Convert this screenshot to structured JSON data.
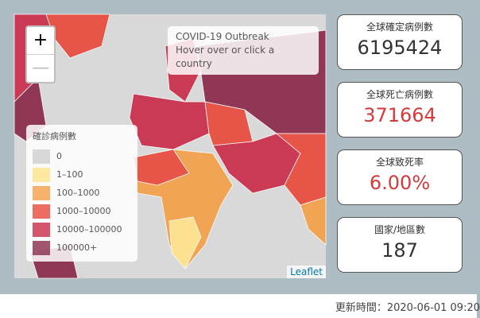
{
  "map": {
    "zoom_in": "+",
    "zoom_out": "—",
    "info": {
      "title": "COVID-19 Outbreak",
      "subtitle": "Hover over or click a country"
    },
    "legend": {
      "title": "確診病例數",
      "items": [
        {
          "label": "0",
          "color": "#d0d0d0"
        },
        {
          "label": "1–100",
          "color": "#ffe38a"
        },
        {
          "label": "100–1000",
          "color": "#f5a04a"
        },
        {
          "label": "1000–10000",
          "color": "#e84a3c"
        },
        {
          "label": "10000–100000",
          "color": "#c92d4a"
        },
        {
          "label": "100000+",
          "color": "#8a2a4a"
        }
      ]
    },
    "attribution": "Leaflet"
  },
  "cards": [
    {
      "label": "全球確定病例數",
      "value": "6195424",
      "color": "#333333"
    },
    {
      "label": "全球死亡病例數",
      "value": "371664",
      "color": "#d63a3a"
    },
    {
      "label": "全球致死率",
      "value": "6.00%",
      "color": "#d63a3a"
    },
    {
      "label": "國家/地區數",
      "value": "187",
      "color": "#333333"
    }
  ],
  "footer": "更新時間：2020-06-01 09:20"
}
